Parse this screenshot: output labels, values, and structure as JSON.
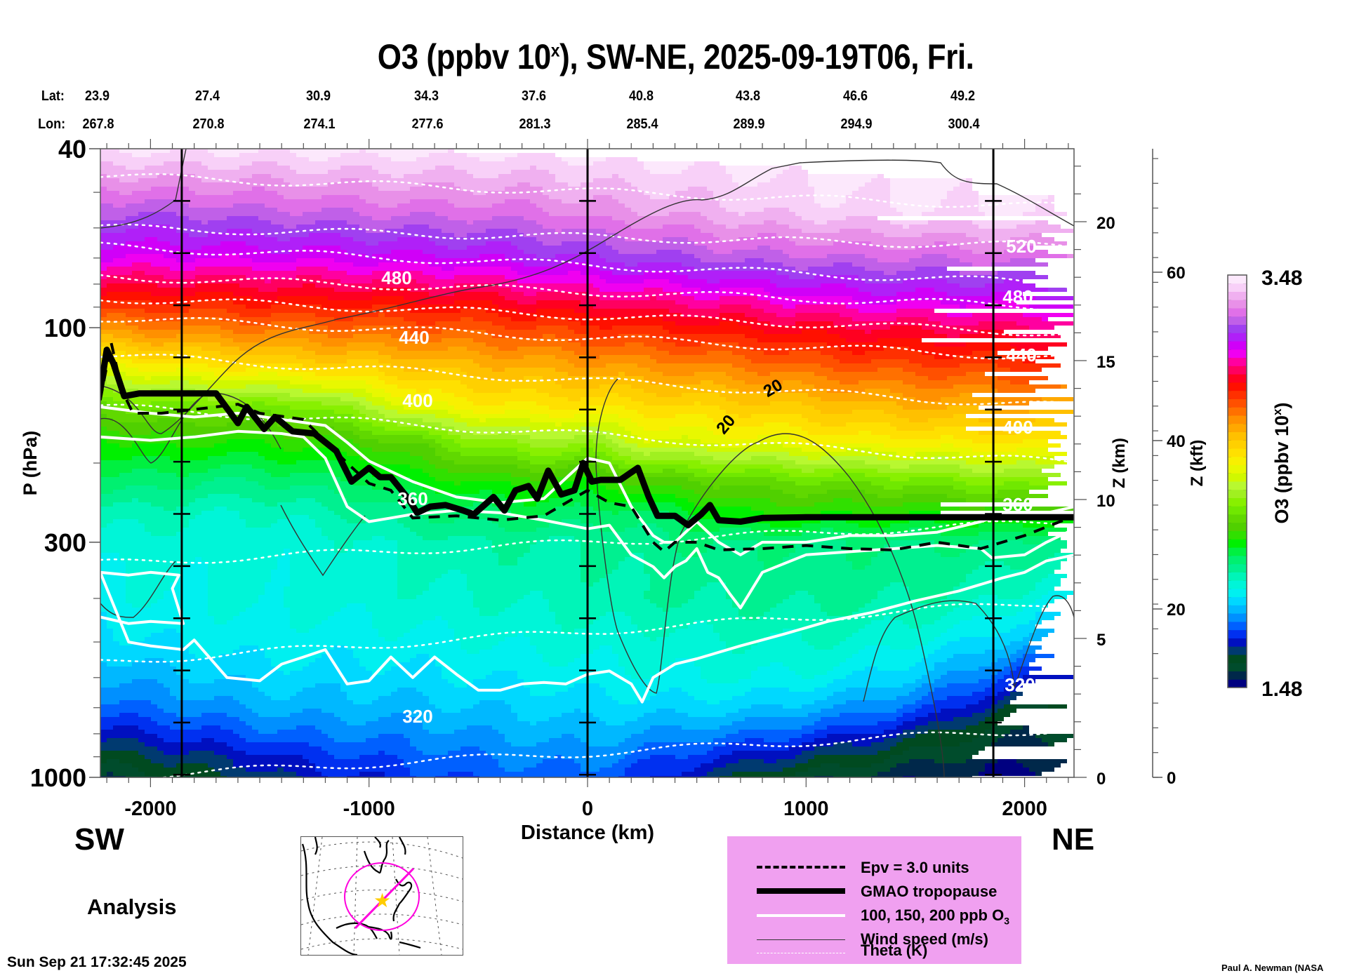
{
  "header": {
    "title_main": "O3 (ppbv 10",
    "title_sup": "x",
    "title_rest": "), SW-NE, 2025-09-19T06, Fri.",
    "lat_label": "Lat:",
    "lon_label": "Lon:",
    "lat_values": [
      "23.9",
      "27.4",
      "30.9",
      "34.3",
      "37.6",
      "40.8",
      "43.8",
      "46.6",
      "49.2"
    ],
    "lon_values": [
      "267.8",
      "270.8",
      "274.1",
      "277.6",
      "281.3",
      "285.4",
      "289.9",
      "294.9",
      "300.4"
    ]
  },
  "labels": {
    "direction_left": "SW",
    "direction_right": "NE",
    "analysis": "Analysis",
    "timestamp": "Sun Sep 21 17:32:45 2025",
    "credit": "Paul A. Newman (NASA"
  },
  "legend": {
    "items": [
      {
        "label": "Epv = 3.0 units",
        "style": "dashed-black"
      },
      {
        "label": "GMAO tropopause",
        "style": "thick-black"
      },
      {
        "label": "100, 150, 200 ppb O",
        "sub": "3",
        "style": "white"
      },
      {
        "label": "Wind speed (m/s)",
        "style": "thin-black"
      },
      {
        "label": "Theta (K)",
        "style": "dotted-white"
      }
    ],
    "background": "#f0a0f0"
  },
  "map": {
    "marker": "star",
    "marker_color": "#ffcc00",
    "track_color": "#ff00dd"
  },
  "chart_data": {
    "type": "heatmap",
    "title": "O3 (ppbv 10^x), SW-NE, 2025-09-19T06, Fri.",
    "xlabel": "Distance (km)",
    "ylabel": "P (hPa)",
    "ylabel_right": "Z (km)",
    "ylabel_right2": "Z (kft)",
    "colorbar_label": "O3 (ppbv 10",
    "colorbar_label_sup": "x",
    "colorbar_label_end": ")",
    "xlim": [
      -2230,
      2230
    ],
    "ylim": [
      1000,
      40
    ],
    "yscale": "log",
    "x_ticks": [
      -2000,
      -1000,
      0,
      1000,
      2000
    ],
    "x_tick_labels": [
      "-2000",
      "-1000",
      "0",
      "1000",
      "2000"
    ],
    "y_ticks": [
      40,
      100,
      300,
      1000
    ],
    "y_tick_labels": [
      "40",
      "100",
      "300",
      "1000"
    ],
    "z_km_ticks": [
      0,
      5,
      10,
      15,
      20
    ],
    "z_km_tick_labels": [
      "0",
      "5",
      "10",
      "15",
      "20"
    ],
    "z_kft_ticks": [
      0,
      20,
      40,
      60
    ],
    "z_kft_tick_labels": [
      "0",
      "20",
      "40",
      "60"
    ],
    "colorbar": {
      "min": 1.48,
      "max": 3.48,
      "min_label": "1.48",
      "max_label": "3.48",
      "colors": [
        "#000080",
        "#00284a",
        "#004c2c",
        "#004a20",
        "#003a70",
        "#0010c0",
        "#0030f0",
        "#0060ff",
        "#0090ff",
        "#00b8ff",
        "#00d8ff",
        "#00f0f0",
        "#00f5d8",
        "#00f5b8",
        "#00f090",
        "#00f070",
        "#00f040",
        "#00f000",
        "#30e000",
        "#50d000",
        "#60d800",
        "#70e800",
        "#88f000",
        "#a0f020",
        "#b8f830",
        "#d0f800",
        "#e8f800",
        "#f8f000",
        "#ffe000",
        "#ffd000",
        "#ffc000",
        "#ffa800",
        "#ff9000",
        "#ff7000",
        "#ff5000",
        "#ff3000",
        "#ff1000",
        "#ff0020",
        "#ff0060",
        "#ff00a0",
        "#f000f0",
        "#d000f8",
        "#b020f8",
        "#a040f0",
        "#c060e8",
        "#e070e8",
        "#e890e8",
        "#f0b0f0",
        "#f8d0f8",
        "#fce8fc"
      ]
    },
    "vertical_markers_km": [
      -1857,
      0,
      1857
    ],
    "ozone_grid": {
      "x_km": [
        -2230,
        -2000,
        -1750,
        -1500,
        -1250,
        -1000,
        -750,
        -500,
        -250,
        0,
        250,
        500,
        750,
        1000,
        1250,
        1500,
        1750,
        2000,
        2230
      ],
      "p_hpa": [
        40,
        55,
        70,
        85,
        100,
        120,
        150,
        180,
        220,
        260,
        300,
        400,
        500,
        600,
        700,
        800,
        900,
        1000
      ],
      "log10_ppbv_rows": [
        [
          3.45,
          3.45,
          3.45,
          3.45,
          3.46,
          3.46,
          3.46,
          3.46,
          3.46,
          3.46,
          3.47,
          3.47,
          3.47,
          3.47,
          3.47,
          3.47,
          3.47,
          3.47,
          3.47
        ],
        [
          3.25,
          3.25,
          3.26,
          3.27,
          3.28,
          3.29,
          3.3,
          3.3,
          3.31,
          3.34,
          3.36,
          3.38,
          3.4,
          3.42,
          3.43,
          3.44,
          3.44,
          3.45,
          3.45
        ],
        [
          3.12,
          3.12,
          3.12,
          3.13,
          3.13,
          3.14,
          3.15,
          3.16,
          3.18,
          3.2,
          3.22,
          3.24,
          3.26,
          3.27,
          3.28,
          3.28,
          3.29,
          3.3,
          3.3
        ],
        [
          2.95,
          2.95,
          2.95,
          2.96,
          2.97,
          2.97,
          2.98,
          2.99,
          3.02,
          3.04,
          3.06,
          3.08,
          3.1,
          3.12,
          3.14,
          3.15,
          3.15,
          3.16,
          3.17
        ],
        [
          2.78,
          2.8,
          2.8,
          2.82,
          2.82,
          2.84,
          2.85,
          2.86,
          2.88,
          2.9,
          2.92,
          2.94,
          2.96,
          2.98,
          3.0,
          3.01,
          3.02,
          3.03,
          3.03
        ],
        [
          2.55,
          2.6,
          2.62,
          2.64,
          2.66,
          2.68,
          2.7,
          2.72,
          2.74,
          2.76,
          2.78,
          2.8,
          2.82,
          2.85,
          2.87,
          2.88,
          2.89,
          2.9,
          2.9
        ],
        [
          2.3,
          2.34,
          2.34,
          2.35,
          2.36,
          2.45,
          2.55,
          2.58,
          2.6,
          2.6,
          2.62,
          2.64,
          2.66,
          2.68,
          2.7,
          2.72,
          2.73,
          2.74,
          2.74
        ],
        [
          2.18,
          2.22,
          2.2,
          2.2,
          2.22,
          2.25,
          2.3,
          2.38,
          2.42,
          2.4,
          2.5,
          2.52,
          2.54,
          2.56,
          2.58,
          2.58,
          2.6,
          2.6,
          2.62
        ],
        [
          2.1,
          2.1,
          2.08,
          2.08,
          2.1,
          2.12,
          2.18,
          2.2,
          2.22,
          2.2,
          2.25,
          2.28,
          2.3,
          2.32,
          2.32,
          2.34,
          2.36,
          2.38,
          2.4
        ],
        [
          2.02,
          2.02,
          2.0,
          2.0,
          2.02,
          2.05,
          2.08,
          2.1,
          2.12,
          2.1,
          2.1,
          2.15,
          2.2,
          2.2,
          2.2,
          2.2,
          2.2,
          2.22,
          2.2
        ],
        [
          1.98,
          1.98,
          1.98,
          1.97,
          1.98,
          2.0,
          2.02,
          2.04,
          2.04,
          2.04,
          2.06,
          2.08,
          2.08,
          2.08,
          2.08,
          2.08,
          2.08,
          2.08,
          2.04
        ],
        [
          1.94,
          1.96,
          1.96,
          1.97,
          1.97,
          1.98,
          1.99,
          2.0,
          2.01,
          2.02,
          2.04,
          2.04,
          2.05,
          2.05,
          2.05,
          2.04,
          2.02,
          1.98,
          1.92
        ],
        [
          1.9,
          1.92,
          1.93,
          1.94,
          1.94,
          1.94,
          1.95,
          1.96,
          1.97,
          1.98,
          1.98,
          1.99,
          2.0,
          2.0,
          1.99,
          1.96,
          1.92,
          1.86,
          1.8
        ],
        [
          1.84,
          1.86,
          1.88,
          1.9,
          1.9,
          1.9,
          1.91,
          1.92,
          1.93,
          1.94,
          1.95,
          1.96,
          1.96,
          1.95,
          1.92,
          1.88,
          1.82,
          1.72,
          1.66
        ],
        [
          1.78,
          1.8,
          1.82,
          1.85,
          1.86,
          1.86,
          1.87,
          1.88,
          1.89,
          1.9,
          1.9,
          1.9,
          1.89,
          1.86,
          1.83,
          1.78,
          1.7,
          1.6,
          1.58
        ],
        [
          1.7,
          1.72,
          1.75,
          1.78,
          1.8,
          1.81,
          1.82,
          1.84,
          1.85,
          1.86,
          1.84,
          1.82,
          1.8,
          1.76,
          1.72,
          1.66,
          1.6,
          1.56,
          1.56
        ],
        [
          1.62,
          1.64,
          1.68,
          1.7,
          1.74,
          1.76,
          1.78,
          1.8,
          1.81,
          1.82,
          1.78,
          1.74,
          1.7,
          1.66,
          1.62,
          1.58,
          1.55,
          1.53,
          1.53
        ],
        [
          1.56,
          1.58,
          1.62,
          1.66,
          1.7,
          1.72,
          1.75,
          1.77,
          1.78,
          1.78,
          1.74,
          1.68,
          1.62,
          1.58,
          1.55,
          1.53,
          1.52,
          1.5,
          1.5
        ]
      ]
    },
    "tropopause_hpa": {
      "x_km": [
        -2230,
        -2200,
        -2170,
        -2120,
        -2050,
        -1800,
        -1700,
        -1600,
        -1560,
        -1480,
        -1430,
        -1350,
        -1250,
        -1150,
        -1080,
        -1000,
        -950,
        -900,
        -820,
        -780,
        -720,
        -650,
        -570,
        -520,
        -430,
        -380,
        -330,
        -270,
        -230,
        -180,
        -120,
        -60,
        -20,
        20,
        60,
        150,
        230,
        280,
        320,
        400,
        460,
        520,
        560,
        600,
        700,
        800,
        1000,
        1500,
        2230
      ],
      "p": [
        138,
        112,
        120,
        142,
        140,
        140,
        140,
        163,
        150,
        168,
        158,
        170,
        172,
        188,
        220,
        205,
        215,
        215,
        240,
        258,
        250,
        248,
        255,
        260,
        238,
        255,
        230,
        225,
        240,
        208,
        235,
        230,
        200,
        220,
        218,
        218,
        205,
        238,
        262,
        262,
        275,
        260,
        248,
        268,
        270,
        265,
        264,
        264,
        264
      ]
    },
    "epv_hpa": {
      "x_km": [
        -2230,
        -2180,
        -2130,
        -2080,
        -1950,
        -1800,
        -1600,
        -1500,
        -1300,
        -1100,
        -1000,
        -900,
        -800,
        -600,
        -400,
        -200,
        0,
        100,
        200,
        300,
        350,
        400,
        500,
        600,
        800,
        1000,
        1200,
        1400,
        1600,
        1800,
        2000,
        2230
      ],
      "p": [
        145,
        108,
        138,
        155,
        155,
        152,
        148,
        155,
        160,
        200,
        222,
        230,
        265,
        262,
        268,
        262,
        230,
        245,
        250,
        300,
        315,
        300,
        300,
        312,
        310,
        305,
        310,
        312,
        300,
        310,
        290,
        262
      ]
    },
    "o3_white_contours_hpa": [
      {
        "x_km": [
          -2230,
          -2000,
          -1800,
          -1600,
          -1400,
          -1200,
          -1100,
          -1000,
          -800,
          -600,
          -400,
          -200,
          0,
          100,
          200,
          300,
          350,
          400,
          500,
          600,
          700,
          800,
          1000,
          1200,
          1400,
          1600,
          1800,
          1900,
          2000,
          2230
        ],
        "p": [
          150,
          155,
          158,
          155,
          160,
          165,
          180,
          198,
          220,
          238,
          245,
          240,
          195,
          200,
          250,
          290,
          300,
          300,
          270,
          300,
          320,
          300,
          300,
          290,
          290,
          285,
          270,
          260,
          265,
          250
        ]
      },
      {
        "x_km": [
          -2230,
          -2000,
          -1800,
          -1600,
          -1400,
          -1300,
          -1200,
          -1100,
          -1000,
          -900,
          -800,
          -600,
          -400,
          -200,
          0,
          100,
          200,
          300,
          350,
          400,
          450,
          500,
          550,
          600,
          650,
          700,
          800,
          1000,
          1200,
          1400,
          1600,
          1800,
          1850,
          2000,
          2100,
          2230
        ],
        "p": [
          175,
          178,
          175,
          170,
          172,
          175,
          195,
          250,
          270,
          265,
          260,
          255,
          258,
          268,
          280,
          275,
          320,
          340,
          360,
          340,
          330,
          310,
          350,
          360,
          390,
          420,
          350,
          320,
          315,
          310,
          305,
          310,
          325,
          320,
          300,
          280
        ]
      },
      {
        "x_km": [
          -2230,
          -2100,
          -2000,
          -1850,
          -1900,
          -1870,
          -2000,
          -2100,
          -2230,
          -2100,
          -2000,
          -1850,
          -1800,
          -1650,
          -1500,
          -1400,
          -1300,
          -1200,
          -1100,
          -1000,
          -900,
          -800,
          -700,
          -600,
          -500,
          -400,
          -300,
          -200,
          -100,
          0,
          100,
          200,
          250,
          300,
          400,
          500,
          700,
          900,
          1100,
          1300,
          1500,
          1700,
          1900,
          2000,
          2100,
          2230
        ],
        "p": [
          440,
          455,
          450,
          455,
          380,
          355,
          350,
          355,
          350,
          500,
          510,
          520,
          495,
          600,
          610,
          560,
          540,
          520,
          620,
          610,
          540,
          600,
          540,
          590,
          640,
          640,
          620,
          615,
          620,
          590,
          580,
          620,
          680,
          600,
          560,
          545,
          510,
          480,
          450,
          430,
          405,
          385,
          360,
          350,
          330,
          320
        ]
      }
    ],
    "theta_labels_k": [
      "520",
      "480",
      "440",
      "400",
      "360",
      "320"
    ],
    "wind_label_ms": "20"
  }
}
